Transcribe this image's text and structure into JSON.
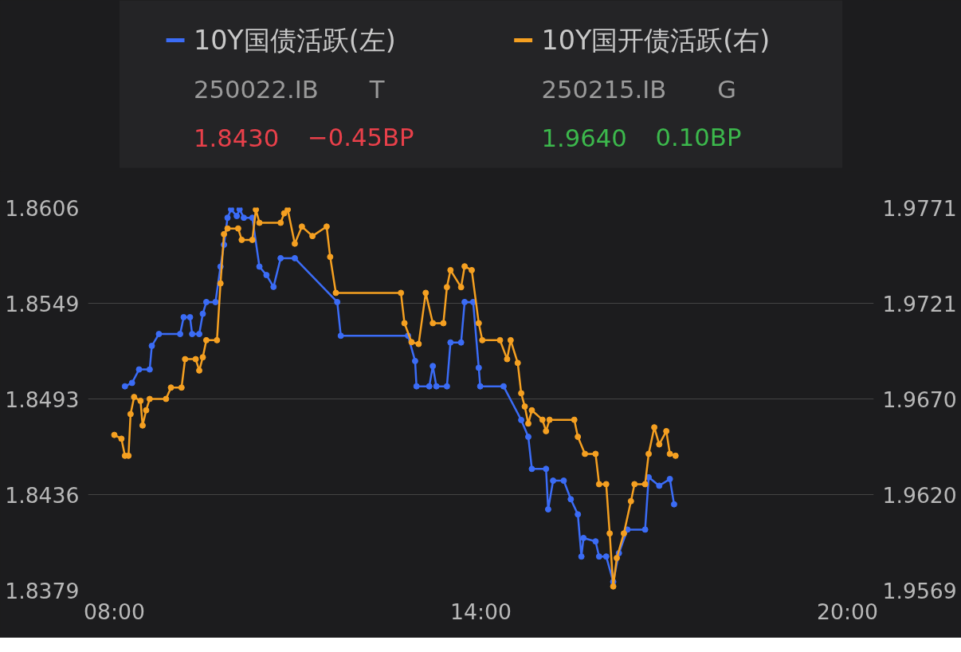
{
  "chart_data": {
    "type": "line",
    "marker": "circle",
    "grid": "y",
    "legend": "top",
    "x": [
      8.174,
      8.29,
      8.405,
      8.579,
      8.614,
      8.73,
      9.077,
      9.135,
      9.239,
      9.274,
      9.39,
      9.448,
      9.506,
      9.656,
      9.738,
      9.795,
      9.853,
      9.911,
      10.004,
      10.05,
      10.12,
      10.259,
      10.375,
      10.49,
      10.606,
      10.722,
      10.954,
      11.649,
      11.707,
      12.807,
      12.923,
      12.946,
      13.155,
      13.213,
      13.271,
      13.444,
      13.502,
      13.676,
      13.734,
      13.873,
      13.965,
      13.989,
      14.371,
      14.66,
      14.776,
      14.834,
      15.066,
      15.101,
      15.182,
      15.356,
      15.471,
      15.587,
      15.645,
      15.68,
      15.877,
      15.935,
      16.051,
      16.166,
      16.259,
      16.398,
      16.688,
      16.746,
      16.919,
      17.093,
      17.162
    ],
    "series": [
      {
        "name": "10Y国债活跃(左)",
        "color": "#3b6cf6",
        "values": [
          1.85,
          1.8502,
          1.851,
          1.851,
          1.8524,
          1.8531,
          1.8531,
          1.8541,
          1.8541,
          1.8531,
          1.8531,
          1.8543,
          1.855,
          1.855,
          1.8571,
          1.8584,
          1.86,
          1.8605,
          1.8601,
          1.8605,
          1.86,
          1.86,
          1.8571,
          1.8566,
          1.8559,
          1.8576,
          1.8576,
          1.855,
          1.853,
          1.853,
          1.8515,
          1.85,
          1.85,
          1.8512,
          1.85,
          1.85,
          1.8526,
          1.8526,
          1.855,
          1.855,
          1.8511,
          1.85,
          1.85,
          1.848,
          1.847,
          1.8451,
          1.8451,
          1.8427,
          1.8444,
          1.8444,
          1.8433,
          1.8424,
          1.8399,
          1.841,
          1.8408,
          1.8399,
          1.8399,
          1.8384,
          1.8401,
          1.8415,
          1.8415,
          1.8446,
          1.8441,
          1.8445,
          1.843
        ]
      },
      {
        "name": "10Y国开债活跃(右)",
        "color": "#f5a021",
        "axis": "y2",
        "x": [
          8.0,
          8.116,
          8.174,
          8.232,
          8.266,
          8.324,
          8.429,
          8.463,
          8.521,
          8.579,
          8.846,
          8.927,
          9.1,
          9.158,
          9.332,
          9.39,
          9.448,
          9.506,
          9.68,
          9.738,
          9.795,
          9.853,
          10.027,
          10.085,
          10.259,
          10.317,
          10.375,
          10.722,
          10.78,
          10.838,
          10.954,
          11.07,
          11.243,
          11.475,
          11.533,
          11.626,
          12.691,
          12.749,
          12.865,
          12.981,
          13.097,
          13.213,
          13.386,
          13.444,
          13.502,
          13.676,
          13.734,
          13.85,
          13.965,
          14.023,
          14.313,
          14.429,
          14.487,
          14.603,
          14.66,
          14.718,
          14.776,
          14.834,
          15.008,
          15.066,
          15.124,
          15.529,
          15.587,
          15.703,
          15.877,
          15.935,
          16.051,
          16.108,
          16.166,
          16.224,
          16.34,
          16.456,
          16.514,
          16.688,
          16.746,
          16.838,
          16.919,
          17.035,
          17.093,
          17.186
        ],
        "values": [
          1.9651,
          1.9649,
          1.964,
          1.964,
          1.9662,
          1.9671,
          1.9669,
          1.9656,
          1.9664,
          1.967,
          1.967,
          1.9676,
          1.9676,
          1.9691,
          1.9691,
          1.9685,
          1.9692,
          1.9701,
          1.9701,
          1.9731,
          1.9757,
          1.976,
          1.976,
          1.9754,
          1.9754,
          1.977,
          1.9763,
          1.9763,
          1.9768,
          1.977,
          1.9752,
          1.9761,
          1.9756,
          1.9761,
          1.9745,
          1.9726,
          1.9726,
          1.971,
          1.97,
          1.9699,
          1.9726,
          1.971,
          1.971,
          1.9729,
          1.9738,
          1.9729,
          1.974,
          1.9738,
          1.971,
          1.9701,
          1.9701,
          1.9691,
          1.9701,
          1.9689,
          1.9673,
          1.9666,
          1.9657,
          1.9664,
          1.9659,
          1.9653,
          1.9659,
          1.9659,
          1.965,
          1.9641,
          1.9641,
          1.9625,
          1.9625,
          1.9599,
          1.9571,
          1.9586,
          1.9599,
          1.9616,
          1.9625,
          1.9625,
          1.9641,
          1.9655,
          1.9646,
          1.9653,
          1.9641,
          1.964
        ]
      }
    ],
    "xlim": [
      7.57,
      20.43
    ],
    "xticks": [
      {
        "value": 8,
        "label": "08:00"
      },
      {
        "value": 14,
        "label": "14:00"
      },
      {
        "value": 20,
        "label": "20:00"
      }
    ],
    "ylim": [
      1.8379,
      1.8606
    ],
    "yticks": [
      1.8379,
      {
        "value": 1.843575,
        "label": "1.8436"
      },
      {
        "value": 1.84925,
        "label": "1.8493"
      },
      {
        "value": 1.854925,
        "label": "1.8549"
      },
      1.8606
    ],
    "y2lim": [
      1.9569,
      1.9771
    ],
    "y2ticks": [
      1.9569,
      {
        "value": 1.96195,
        "label": "1.9620"
      },
      {
        "value": 1.967,
        "label": "1.9670"
      },
      {
        "value": 1.97205,
        "label": "1.9721"
      },
      1.9771
    ],
    "annotations": [
      "250022.IB",
      "T",
      "1.8430",
      "−0.45BP",
      "250215.IB",
      "G",
      "1.9640",
      "0.10BP"
    ]
  }
}
